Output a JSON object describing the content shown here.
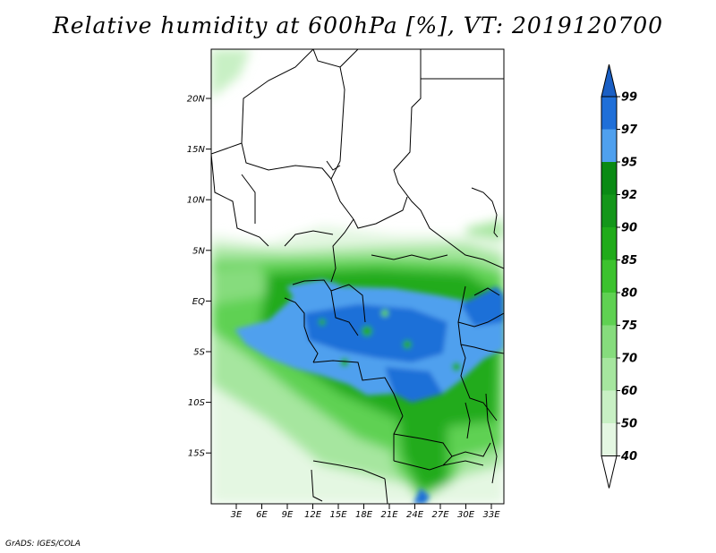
{
  "title": "Relative humidity at 600hPa [%], VT: 2019120700",
  "credit": "GrADS: IGES/COLA",
  "map": {
    "lat_labels": [
      "20N",
      "15N",
      "10N",
      "5N",
      "EQ",
      "5S",
      "10S",
      "15S"
    ],
    "lon_labels": [
      "3E",
      "6E",
      "9E",
      "12E",
      "15E",
      "18E",
      "21E",
      "24E",
      "27E",
      "30E",
      "33E"
    ]
  },
  "colorbar": {
    "levels": [
      "40",
      "50",
      "60",
      "70",
      "75",
      "80",
      "85",
      "90",
      "92",
      "95",
      "97",
      "99"
    ],
    "colors": [
      "#ffffff",
      "#e4f7e2",
      "#c8f0c4",
      "#a6e69f",
      "#86dc7d",
      "#5fd152",
      "#3cc22e",
      "#20ab1a",
      "#14961a",
      "#0a8a14",
      "#4fa0ee",
      "#1f6fd8",
      "#1a5fc4"
    ]
  }
}
